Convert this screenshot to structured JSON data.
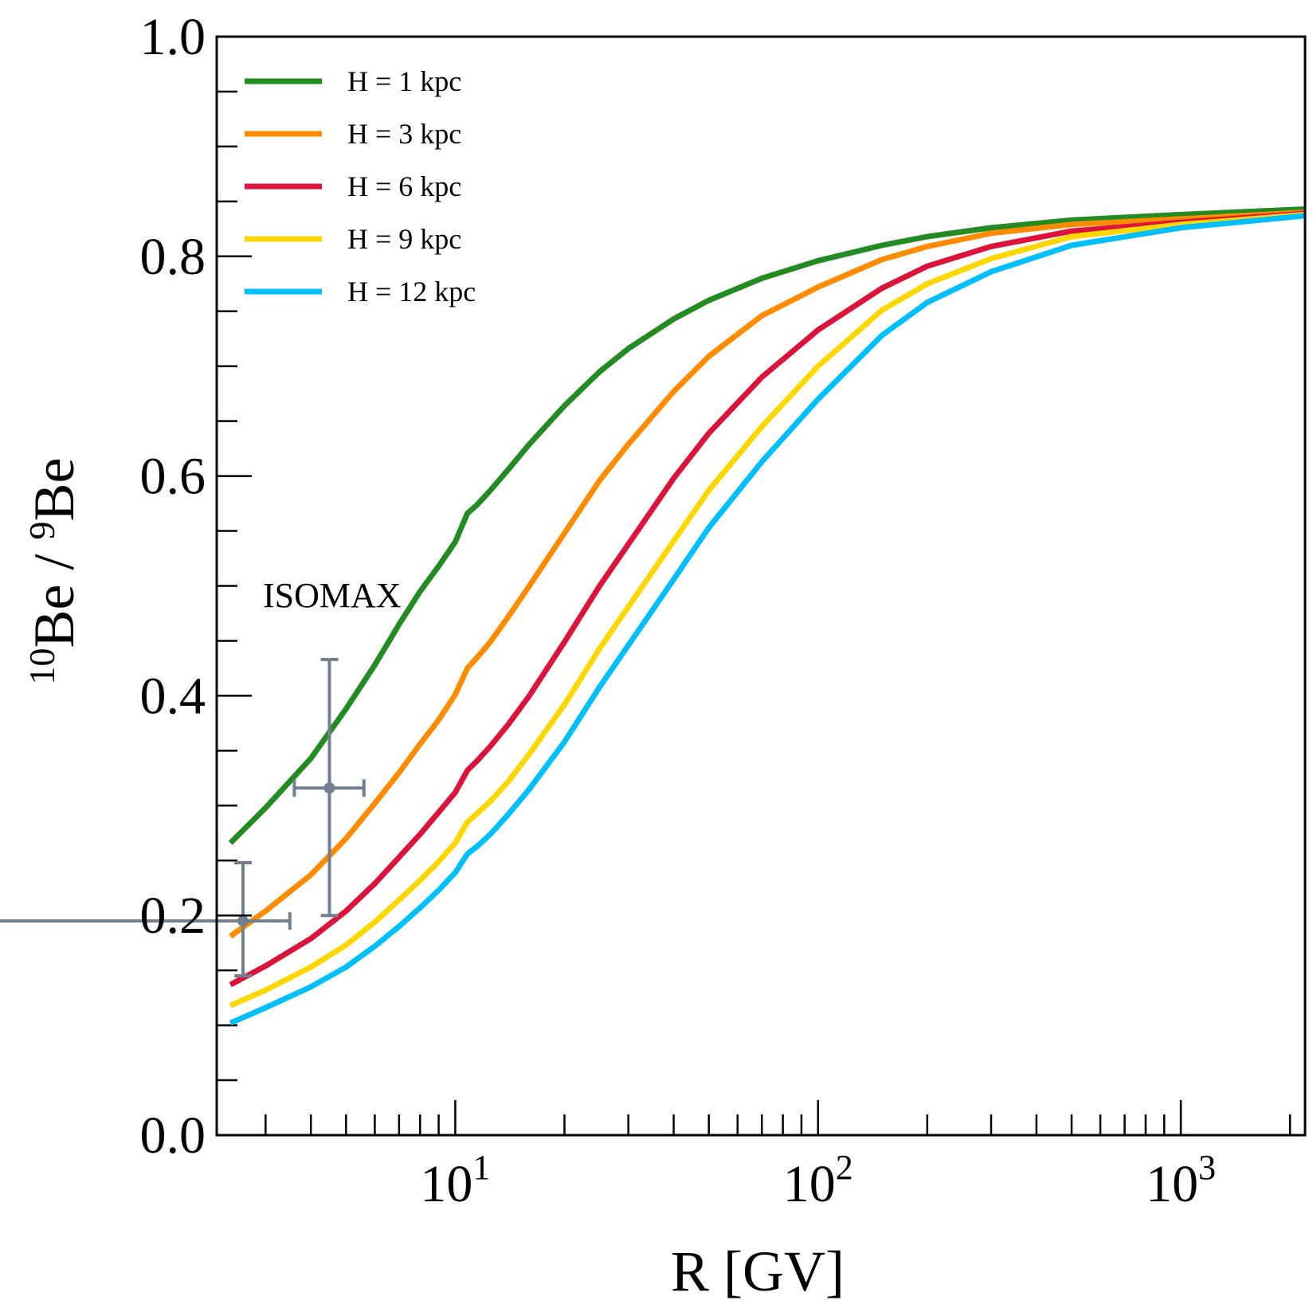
{
  "chart_data": {
    "type": "line",
    "xscale": "log",
    "xlim": [
      2.2,
      2200
    ],
    "ylim": [
      0.0,
      1.0
    ],
    "xlabel": "R [GV]",
    "ylabel": {
      "main": "Be / ",
      "sup1": "10",
      "sup2": "9",
      "end": "Be"
    },
    "x_ticks": [
      {
        "base": "10",
        "exp": "1",
        "value": 10
      },
      {
        "base": "10",
        "exp": "2",
        "value": 100
      },
      {
        "base": "10",
        "exp": "3",
        "value": 1000
      }
    ],
    "y_ticks": [
      {
        "label": "0.0",
        "value": 0.0
      },
      {
        "label": "0.2",
        "value": 0.2
      },
      {
        "label": "0.4",
        "value": 0.4
      },
      {
        "label": "0.6",
        "value": 0.6
      },
      {
        "label": "0.8",
        "value": 0.8
      },
      {
        "label": "1.0",
        "value": 1.0
      }
    ],
    "legend_position": "top-left",
    "series": [
      {
        "name": "H = 1 kpc",
        "color": "#228B22",
        "x": [
          2.4,
          3.0,
          4.0,
          5.0,
          6.0,
          7.0,
          8.0,
          9.0,
          10.0,
          10.8,
          11.5,
          12.5,
          14,
          16,
          20,
          25,
          30,
          40,
          50,
          70,
          100,
          150,
          200,
          300,
          500,
          1000,
          2200
        ],
        "y": [
          0.266,
          0.298,
          0.343,
          0.388,
          0.428,
          0.465,
          0.495,
          0.518,
          0.54,
          0.566,
          0.574,
          0.587,
          0.606,
          0.629,
          0.664,
          0.695,
          0.716,
          0.743,
          0.76,
          0.78,
          0.796,
          0.81,
          0.818,
          0.826,
          0.833,
          0.838,
          0.843
        ]
      },
      {
        "name": "H = 3 kpc",
        "color": "#FF8C00",
        "x": [
          2.4,
          3.0,
          4.0,
          5.0,
          6.0,
          7.0,
          8.0,
          9.0,
          10.0,
          10.8,
          11.5,
          12.5,
          14,
          16,
          20,
          25,
          30,
          40,
          50,
          70,
          100,
          150,
          200,
          300,
          500,
          1000,
          2200
        ],
        "y": [
          0.181,
          0.204,
          0.237,
          0.27,
          0.302,
          0.33,
          0.356,
          0.378,
          0.401,
          0.425,
          0.435,
          0.449,
          0.472,
          0.5,
          0.548,
          0.596,
          0.629,
          0.677,
          0.709,
          0.746,
          0.772,
          0.797,
          0.809,
          0.821,
          0.829,
          0.834,
          0.84
        ]
      },
      {
        "name": "H = 6 kpc",
        "color": "#DC143C",
        "x": [
          2.4,
          3.0,
          4.0,
          5.0,
          6.0,
          7.0,
          8.0,
          9.0,
          10.0,
          10.8,
          11.5,
          12.5,
          14,
          16,
          20,
          25,
          30,
          40,
          50,
          70,
          100,
          150,
          200,
          300,
          500,
          1000,
          2200
        ],
        "y": [
          0.137,
          0.154,
          0.179,
          0.204,
          0.229,
          0.253,
          0.274,
          0.294,
          0.312,
          0.332,
          0.341,
          0.354,
          0.374,
          0.4,
          0.449,
          0.5,
          0.538,
          0.598,
          0.639,
          0.69,
          0.733,
          0.771,
          0.791,
          0.809,
          0.823,
          0.831,
          0.839
        ]
      },
      {
        "name": "H = 9 kpc",
        "color": "#FFD700",
        "x": [
          2.4,
          3.0,
          4.0,
          5.0,
          6.0,
          7.0,
          8.0,
          9.0,
          10.0,
          10.8,
          11.5,
          12.5,
          14,
          16,
          20,
          25,
          30,
          40,
          50,
          70,
          100,
          150,
          200,
          300,
          500,
          1000,
          2200
        ],
        "y": [
          0.118,
          0.132,
          0.153,
          0.173,
          0.194,
          0.214,
          0.232,
          0.249,
          0.266,
          0.285,
          0.293,
          0.304,
          0.322,
          0.347,
          0.392,
          0.443,
          0.481,
          0.541,
          0.587,
          0.645,
          0.7,
          0.751,
          0.775,
          0.798,
          0.818,
          0.829,
          0.838
        ]
      },
      {
        "name": "H = 12 kpc",
        "color": "#00BFFF",
        "x": [
          2.4,
          3.0,
          4.0,
          5.0,
          6.0,
          7.0,
          8.0,
          9.0,
          10.0,
          10.8,
          11.5,
          12.5,
          14,
          16,
          20,
          25,
          30,
          40,
          50,
          70,
          100,
          150,
          200,
          300,
          500,
          1000,
          2200
        ],
        "y": [
          0.102,
          0.116,
          0.135,
          0.153,
          0.172,
          0.19,
          0.207,
          0.223,
          0.239,
          0.256,
          0.263,
          0.274,
          0.292,
          0.315,
          0.358,
          0.408,
          0.446,
          0.506,
          0.553,
          0.613,
          0.67,
          0.728,
          0.758,
          0.786,
          0.81,
          0.826,
          0.837
        ]
      }
    ],
    "data_points": {
      "name": "ISOMAX",
      "color": "#708090",
      "points": [
        {
          "x": 2.6,
          "y": 0.195,
          "xerr": [
            0.4,
            3.5
          ],
          "yerr": [
            0.145,
            0.248
          ]
        },
        {
          "x": 4.5,
          "y": 0.316,
          "xerr": [
            3.6,
            5.6
          ],
          "yerr": [
            0.2,
            0.433
          ]
        }
      ]
    }
  }
}
